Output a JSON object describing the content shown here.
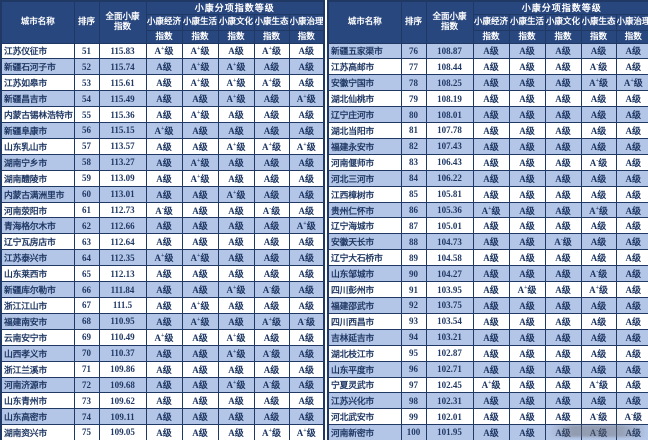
{
  "colors": {
    "header_bg": "#29477f",
    "header_text": "#ffffff",
    "row_alt_bg": "#b4c6e7",
    "row_bg": "#ffffff",
    "border": "#1f3864",
    "text": "#1f3864"
  },
  "header": {
    "city": "城市名称",
    "rank": "排序",
    "overall_line1": "全面小康",
    "overall_line2": "指数",
    "group": "小康分项指数等级",
    "subs": [
      "小康经济",
      "小康生活",
      "小康文化",
      "小康生态",
      "小康治理"
    ],
    "sub_names": [
      "economy",
      "life",
      "culture",
      "ecology",
      "governance"
    ],
    "sub_line2": "指数"
  },
  "tables": [
    {
      "id": "left",
      "rows": [
        {
          "city": "江苏仪征市",
          "rank": 51,
          "index": "115.83",
          "grades": [
            "A+级",
            "A+级",
            "A级",
            "A+级",
            "A级"
          ]
        },
        {
          "city": "新疆石河子市",
          "rank": 52,
          "index": "115.74",
          "grades": [
            "A级",
            "A+级",
            "A+级",
            "A级",
            "A级"
          ]
        },
        {
          "city": "江苏如皋市",
          "rank": 53,
          "index": "115.61",
          "grades": [
            "A级",
            "A+级",
            "A+级",
            "A+级",
            "A级"
          ]
        },
        {
          "city": "新疆昌吉市",
          "rank": 54,
          "index": "115.49",
          "grades": [
            "A级",
            "A级",
            "A+级",
            "A级",
            "A+级"
          ]
        },
        {
          "city": "内蒙古锡林浩特市",
          "rank": 55,
          "index": "115.36",
          "grades": [
            "A级",
            "A+级",
            "A级",
            "A级",
            "A级"
          ]
        },
        {
          "city": "新疆阜康市",
          "rank": 56,
          "index": "115.15",
          "grades": [
            "A+级",
            "A级",
            "A级",
            "A级",
            "A级"
          ]
        },
        {
          "city": "山东乳山市",
          "rank": 57,
          "index": "113.57",
          "grades": [
            "A级",
            "A级",
            "A+级",
            "A+级",
            "A+级"
          ]
        },
        {
          "city": "湖南宁乡市",
          "rank": 58,
          "index": "113.27",
          "grades": [
            "A级",
            "A+级",
            "A级",
            "A级",
            "A级"
          ]
        },
        {
          "city": "湖南醴陵市",
          "rank": 59,
          "index": "113.09",
          "grades": [
            "A级",
            "A+级",
            "A级",
            "A级",
            "A级"
          ]
        },
        {
          "city": "内蒙古满洲里市",
          "rank": 60,
          "index": "113.01",
          "grades": [
            "A级",
            "A级",
            "A+级",
            "A级",
            "A级"
          ]
        },
        {
          "city": "河南荥阳市",
          "rank": 61,
          "index": "112.73",
          "grades": [
            "A-级",
            "A级",
            "A级",
            "A-级",
            "A级"
          ]
        },
        {
          "city": "青海格尔木市",
          "rank": 62,
          "index": "112.66",
          "grades": [
            "A级",
            "A级",
            "A级",
            "A级",
            "A+级"
          ]
        },
        {
          "city": "辽宁瓦房店市",
          "rank": 63,
          "index": "112.64",
          "grades": [
            "A级",
            "A级",
            "A级",
            "A级",
            "A级"
          ]
        },
        {
          "city": "江苏泰兴市",
          "rank": 64,
          "index": "112.35",
          "grades": [
            "A+级",
            "A+级",
            "A级",
            "A级",
            "A级"
          ]
        },
        {
          "city": "山东莱西市",
          "rank": 65,
          "index": "112.13",
          "grades": [
            "A级",
            "A级",
            "A级",
            "A级",
            "A级"
          ]
        },
        {
          "city": "新疆库尔勒市",
          "rank": 66,
          "index": "111.84",
          "grades": [
            "A级",
            "A级",
            "A+级",
            "A-级",
            "A级"
          ]
        },
        {
          "city": "浙江江山市",
          "rank": 67,
          "index": "111.5",
          "grades": [
            "A级",
            "A+级",
            "A级",
            "A级",
            "A级"
          ]
        },
        {
          "city": "福建南安市",
          "rank": 68,
          "index": "110.95",
          "grades": [
            "A级",
            "A+级",
            "A级",
            "A+级",
            "A-级"
          ]
        },
        {
          "city": "云南安宁市",
          "rank": 69,
          "index": "110.49",
          "grades": [
            "A+级",
            "A级",
            "A+级",
            "A级",
            "A级"
          ]
        },
        {
          "city": "山西孝义市",
          "rank": 70,
          "index": "110.37",
          "grades": [
            "A级",
            "A级",
            "A+级",
            "A-级",
            "A级"
          ]
        },
        {
          "city": "浙江兰溪市",
          "rank": 71,
          "index": "109.86",
          "grades": [
            "A级",
            "A级",
            "A级",
            "A级",
            "A级"
          ]
        },
        {
          "city": "河南济源市",
          "rank": 72,
          "index": "109.68",
          "grades": [
            "A级",
            "A级",
            "A+级",
            "A-级",
            "A级"
          ]
        },
        {
          "city": "山东青州市",
          "rank": 73,
          "index": "109.62",
          "grades": [
            "A级",
            "A级",
            "A级",
            "A级",
            "A级"
          ]
        },
        {
          "city": "山东高密市",
          "rank": 74,
          "index": "109.11",
          "grades": [
            "A级",
            "A级",
            "A级",
            "A级",
            "A级"
          ]
        },
        {
          "city": "湖南资兴市",
          "rank": 75,
          "index": "109.05",
          "grades": [
            "A级",
            "A级",
            "A级",
            "A+级",
            "A+级"
          ]
        }
      ]
    },
    {
      "id": "right",
      "rows": [
        {
          "city": "新疆五家渠市",
          "rank": 76,
          "index": "108.87",
          "grades": [
            "A级",
            "A级",
            "A级",
            "A级",
            "A级"
          ]
        },
        {
          "city": "江苏高邮市",
          "rank": 77,
          "index": "108.44",
          "grades": [
            "A级",
            "A级",
            "A级",
            "A-级",
            "A级"
          ]
        },
        {
          "city": "安徽宁国市",
          "rank": 78,
          "index": "108.25",
          "grades": [
            "A级",
            "A级",
            "A级",
            "A+级",
            "A+级"
          ]
        },
        {
          "city": "湖北仙桃市",
          "rank": 79,
          "index": "108.19",
          "grades": [
            "A级",
            "A级",
            "A级",
            "A级",
            "A级"
          ]
        },
        {
          "city": "辽宁庄河市",
          "rank": 80,
          "index": "108.01",
          "grades": [
            "A级",
            "A级",
            "A级",
            "A级",
            "A级"
          ]
        },
        {
          "city": "湖北当阳市",
          "rank": 81,
          "index": "107.78",
          "grades": [
            "A级",
            "A级",
            "A级",
            "A级",
            "A级"
          ]
        },
        {
          "city": "福建永安市",
          "rank": 82,
          "index": "107.43",
          "grades": [
            "A级",
            "A级",
            "A级",
            "A级",
            "A级"
          ]
        },
        {
          "city": "河南偃师市",
          "rank": 83,
          "index": "106.43",
          "grades": [
            "A级",
            "A级",
            "A级",
            "A-级",
            "A级"
          ]
        },
        {
          "city": "河北三河市",
          "rank": 84,
          "index": "106.22",
          "grades": [
            "A级",
            "A级",
            "A级",
            "A级",
            "A级"
          ]
        },
        {
          "city": "江西樟树市",
          "rank": 85,
          "index": "105.81",
          "grades": [
            "A级",
            "A级",
            "A级",
            "A级",
            "A级"
          ]
        },
        {
          "city": "贵州仁怀市",
          "rank": 86,
          "index": "105.36",
          "grades": [
            "A+级",
            "A级",
            "A级",
            "A+级",
            "A级"
          ]
        },
        {
          "city": "辽宁海城市",
          "rank": 87,
          "index": "105.01",
          "grades": [
            "A级",
            "A级",
            "A级",
            "A级",
            "A级"
          ]
        },
        {
          "city": "安徽天长市",
          "rank": 88,
          "index": "104.73",
          "grades": [
            "A级",
            "A级",
            "A-级",
            "A级",
            "A级"
          ]
        },
        {
          "city": "辽宁大石桥市",
          "rank": 89,
          "index": "104.58",
          "grades": [
            "A级",
            "A级",
            "A级",
            "A级",
            "A级"
          ]
        },
        {
          "city": "山东邹城市",
          "rank": 90,
          "index": "104.27",
          "grades": [
            "A级",
            "A级",
            "A级",
            "A-级",
            "A级"
          ]
        },
        {
          "city": "四川彭州市",
          "rank": 91,
          "index": "103.95",
          "grades": [
            "A级",
            "A+级",
            "A级",
            "A+级",
            "A级"
          ]
        },
        {
          "city": "福建邵武市",
          "rank": 92,
          "index": "103.75",
          "grades": [
            "A级",
            "A级",
            "A级",
            "A级",
            "A级"
          ]
        },
        {
          "city": "四川西昌市",
          "rank": 93,
          "index": "103.54",
          "grades": [
            "A级",
            "A级",
            "A级",
            "A级",
            "A级"
          ]
        },
        {
          "city": "吉林延吉市",
          "rank": 94,
          "index": "103.21",
          "grades": [
            "A级",
            "A级",
            "A级",
            "A级",
            "A级"
          ]
        },
        {
          "city": "湖北枝江市",
          "rank": 95,
          "index": "102.87",
          "grades": [
            "A级",
            "A级",
            "A级",
            "A级",
            "A级"
          ]
        },
        {
          "city": "山东平度市",
          "rank": 96,
          "index": "102.71",
          "grades": [
            "A级",
            "A级",
            "A级",
            "A级",
            "A级"
          ]
        },
        {
          "city": "宁夏灵武市",
          "rank": 97,
          "index": "102.45",
          "grades": [
            "A+级",
            "A级",
            "A级",
            "A+级",
            "A级"
          ]
        },
        {
          "city": "江苏兴化市",
          "rank": 98,
          "index": "102.31",
          "grades": [
            "A级",
            "A级",
            "A级",
            "A级",
            "A级"
          ]
        },
        {
          "city": "河北武安市",
          "rank": 99,
          "index": "102.01",
          "grades": [
            "A级",
            "A级",
            "A级",
            "A-级",
            "A-级"
          ]
        },
        {
          "city": "河南新密市",
          "rank": 100,
          "index": "101.95",
          "grades": [
            "A级",
            "A级",
            "A级",
            "A-级",
            "A级"
          ]
        }
      ]
    }
  ]
}
